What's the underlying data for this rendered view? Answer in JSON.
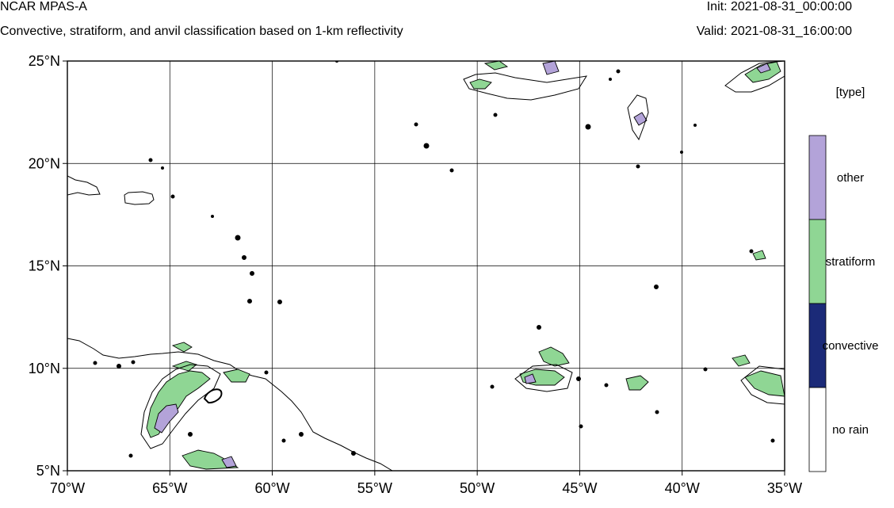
{
  "header": {
    "title": "NCAR MPAS-A",
    "subtitle": "Convective, stratiform, and anvil classification based on 1-km reflectivity",
    "init": "Init: 2021-08-31_00:00:00",
    "valid": "Valid: 2021-08-31_16:00:00"
  },
  "map": {
    "lon_ticks": [
      "70°W",
      "65°W",
      "60°W",
      "55°W",
      "50°W",
      "45°W",
      "40°W",
      "35°W"
    ],
    "lat_ticks": [
      "25°N",
      "20°N",
      "15°N",
      "10°N",
      "5°N"
    ],
    "lon_range": [
      -70,
      -35
    ],
    "lat_range": [
      5,
      25
    ],
    "grid": true
  },
  "legend": {
    "title": "[type]",
    "items": [
      {
        "label": "other",
        "color": "#b3a3d9"
      },
      {
        "label": "stratiform",
        "color": "#8fd694"
      },
      {
        "label": "convective",
        "color": "#1b2a78"
      },
      {
        "label": "no rain",
        "color": "#ffffff"
      }
    ]
  }
}
